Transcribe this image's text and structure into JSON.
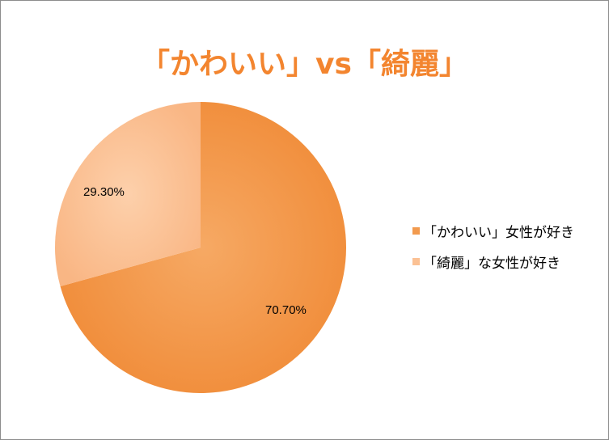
{
  "chart_data": {
    "type": "pie",
    "title": "「かわいい」vs「綺麗」",
    "slices": [
      {
        "label": "「かわいい」女性が好き",
        "value": 70.7,
        "display": "70.70%",
        "color": "#f29a4e"
      },
      {
        "label": "「綺麗」な女性が好き",
        "value": 29.3,
        "display": "29.30%",
        "color": "#fbc194"
      }
    ],
    "legend_position": "right",
    "title_color": "#f3852f"
  }
}
